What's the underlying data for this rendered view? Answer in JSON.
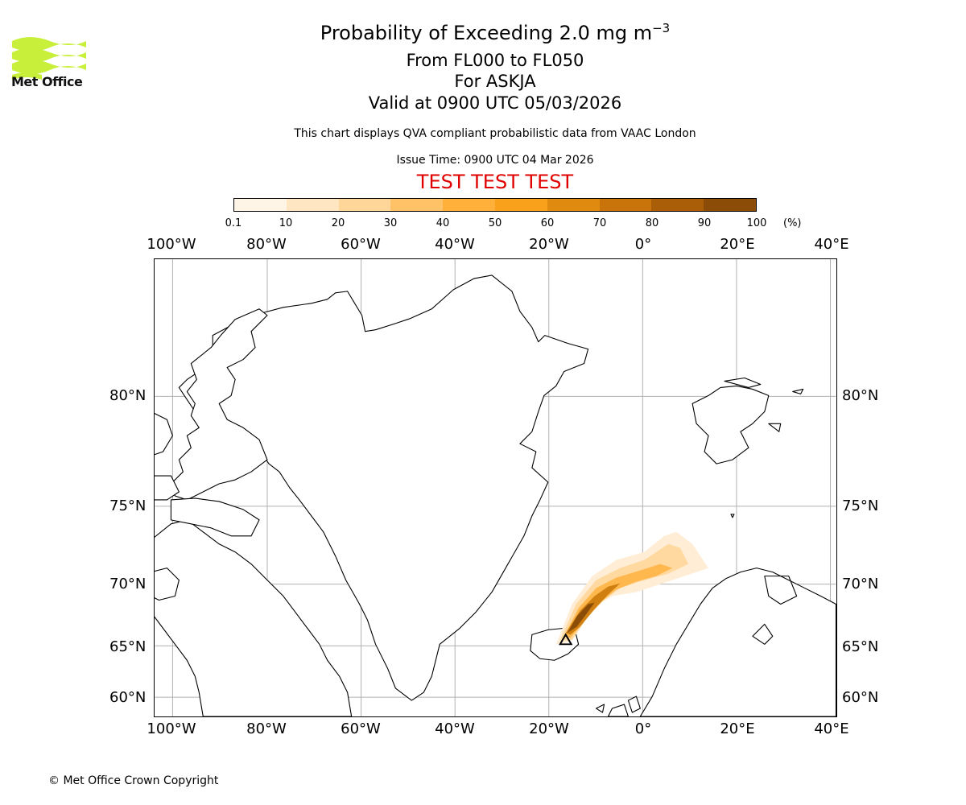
{
  "header": {
    "logo_text": "Met Office",
    "title_main": "Probability of Exceeding 2.0 mg m",
    "title_sup": "−3",
    "level_range": "From FL000 to FL050",
    "volcano": "For ASKJA",
    "valid_time": "Valid at 0900 UTC 05/03/2026",
    "description": "This chart displays QVA compliant probabilistic data from VAAC London",
    "issue_time": "Issue Time: 0900 UTC 04 Mar 2026",
    "test_banner": "TEST TEST TEST"
  },
  "colorbar": {
    "unit": "(%)",
    "ticks": [
      "0.1",
      "10",
      "20",
      "30",
      "40",
      "50",
      "60",
      "70",
      "80",
      "90",
      "100"
    ],
    "colors": [
      "#fff5e6",
      "#ffe6c2",
      "#ffd699",
      "#ffc266",
      "#ffb03b",
      "#f9a11b",
      "#e08a0f",
      "#c8740b",
      "#aa5e08",
      "#8a4c07",
      "#643704"
    ]
  },
  "map": {
    "lon_labels": [
      "100°W",
      "80°W",
      "60°W",
      "40°W",
      "20°W",
      "0°",
      "20°E",
      "40°E"
    ],
    "lat_labels": [
      "80°N",
      "75°N",
      "70°N",
      "65°N",
      "60°N"
    ],
    "land_color": "#ffffff",
    "coast_color": "#000000",
    "grid_color": "#b0b0b0"
  },
  "footer": {
    "copyright": "© Met Office Crown Copyright"
  }
}
